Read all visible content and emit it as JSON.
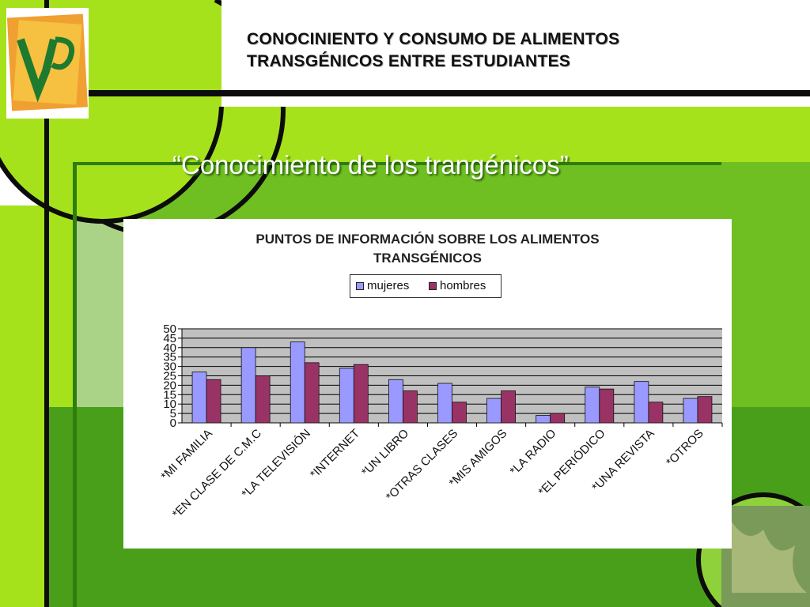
{
  "header": {
    "title_line1": "CONOCINIENTO Y CONSUMO DE ALIMENTOS",
    "title_line2": "TRANSGÉNICOS ENTRE ESTUDIANTES"
  },
  "slide": {
    "subtitle": "“Conocimiento de los trangénicos”"
  },
  "colors": {
    "lime": "#a6e21c",
    "green": "#6fbf22",
    "dark_green": "#4a9f1a",
    "mujeres": "#9999ff",
    "hombres": "#993366",
    "plot_bg": "#c0c0c0"
  },
  "chart_data": {
    "type": "bar",
    "title_line1": "PUNTOS DE INFORMACIÓN SOBRE LOS ALIMENTOS",
    "title_line2": "TRANSGÉNICOS",
    "categories": [
      "*MI FAMILIA",
      "*EN CLASE DE C.M.C",
      "*LA TELEVISIÓN",
      "*INTERNET",
      "*UN LIBRO",
      "*OTRAS CLASES",
      "*MIS AMIGOS",
      "*LA RADIO",
      "*EL PERIÓDICO",
      "*UNA REVISTA",
      "*OTROS"
    ],
    "series": [
      {
        "name": "mujeres",
        "values": [
          27,
          40,
          43,
          29,
          23,
          21,
          13,
          4,
          19,
          22,
          13
        ]
      },
      {
        "name": "hombres",
        "values": [
          23,
          25,
          32,
          31,
          17,
          11,
          17,
          5,
          18,
          11,
          14
        ]
      }
    ],
    "yticks": [
      "0",
      "5",
      "10",
      "15",
      "20",
      "25",
      "30",
      "35",
      "40",
      "45",
      "50"
    ],
    "ylim": [
      0,
      50
    ],
    "grid": true,
    "legend_position": "top-center"
  }
}
